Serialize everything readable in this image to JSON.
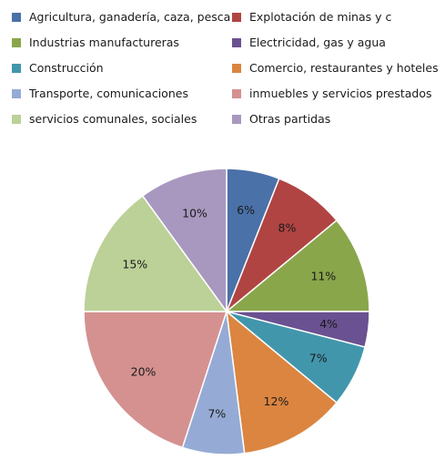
{
  "chart_data": {
    "type": "pie",
    "title": "",
    "legend_position": "top",
    "slices": [
      {
        "label": "Agricultura, ganadería, caza,  pesca",
        "value": 6,
        "value_label": "6%",
        "color": "#4a71a8"
      },
      {
        "label": "Explotación de minas y c",
        "value": 8,
        "value_label": "8%",
        "color": "#b04443"
      },
      {
        "label": "Industrias manufactureras",
        "value": 11,
        "value_label": "11%",
        "color": "#8aa64b"
      },
      {
        "label": "Electricidad, gas y agua",
        "value": 4,
        "value_label": "4%",
        "color": "#6a5191"
      },
      {
        "label": "Construcción",
        "value": 7,
        "value_label": "7%",
        "color": "#4296ac"
      },
      {
        "label": "Comercio,  restaurantes y hoteles",
        "value": 12,
        "value_label": "12%",
        "color": "#db8540"
      },
      {
        "label": "Transporte,  comunicaciones",
        "value": 7,
        "value_label": "7%",
        "color": "#95abd5"
      },
      {
        "label": "inmuebles y servicios prestados",
        "value": 20,
        "value_label": "20%",
        "color": "#d49190"
      },
      {
        "label": "servicios comunales, sociales",
        "value": 15,
        "value_label": "15%",
        "color": "#bbd197"
      },
      {
        "label": "Otras partidas",
        "value": 10,
        "value_label": "10%",
        "color": "#a898bf"
      }
    ]
  }
}
